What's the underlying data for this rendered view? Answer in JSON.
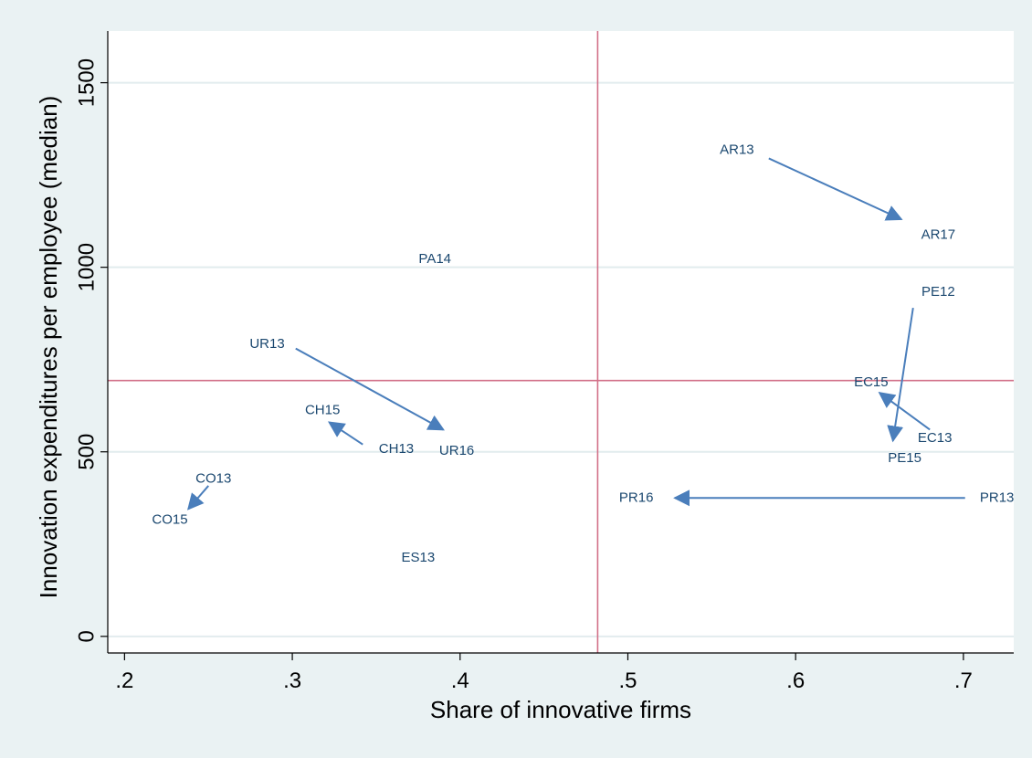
{
  "chart_data": {
    "type": "scatter",
    "xlabel": "Share of innovative firms",
    "ylabel": "Innovation expenditures per employee (median)",
    "xlim": [
      0.19,
      0.73
    ],
    "ylim": [
      -45,
      1640
    ],
    "xticks": [
      0.2,
      0.3,
      0.4,
      0.5,
      0.6,
      0.7
    ],
    "xtick_labels": [
      ".2",
      ".3",
      ".4",
      ".5",
      ".6",
      ".7"
    ],
    "yticks": [
      0,
      500,
      1000,
      1500
    ],
    "ytick_labels": [
      "0",
      "500",
      "1000",
      "1500"
    ],
    "grid": "horizontal",
    "reference_lines": {
      "x": 0.482,
      "y": 693
    },
    "points": [
      {
        "label": "AR13",
        "x": 0.565,
        "y": 1320
      },
      {
        "label": "AR17",
        "x": 0.685,
        "y": 1090
      },
      {
        "label": "PA14",
        "x": 0.385,
        "y": 1025
      },
      {
        "label": "PE12",
        "x": 0.685,
        "y": 935
      },
      {
        "label": "UR13",
        "x": 0.285,
        "y": 795
      },
      {
        "label": "EC15",
        "x": 0.645,
        "y": 690
      },
      {
        "label": "CH15",
        "x": 0.318,
        "y": 615
      },
      {
        "label": "EC13",
        "x": 0.683,
        "y": 540
      },
      {
        "label": "CH13",
        "x": 0.362,
        "y": 510
      },
      {
        "label": "UR16",
        "x": 0.398,
        "y": 505
      },
      {
        "label": "PE15",
        "x": 0.665,
        "y": 485
      },
      {
        "label": "CO13",
        "x": 0.253,
        "y": 430
      },
      {
        "label": "PR16",
        "x": 0.505,
        "y": 378
      },
      {
        "label": "PR13",
        "x": 0.72,
        "y": 378
      },
      {
        "label": "CO15",
        "x": 0.227,
        "y": 318
      },
      {
        "label": "ES13",
        "x": 0.375,
        "y": 215
      }
    ],
    "arrows": [
      {
        "from": [
          0.584,
          1295
        ],
        "to": [
          0.663,
          1130
        ]
      },
      {
        "from": [
          0.302,
          780
        ],
        "to": [
          0.39,
          560
        ]
      },
      {
        "from": [
          0.342,
          520
        ],
        "to": [
          0.322,
          580
        ]
      },
      {
        "from": [
          0.25,
          408
        ],
        "to": [
          0.238,
          345
        ]
      },
      {
        "from": [
          0.67,
          890
        ],
        "to": [
          0.658,
          530
        ]
      },
      {
        "from": [
          0.68,
          560
        ],
        "to": [
          0.65,
          660
        ]
      },
      {
        "from": [
          0.701,
          375
        ],
        "to": [
          0.528,
          375
        ]
      }
    ],
    "colors": {
      "marker": "#1a476f",
      "arrow": "#4a7ebb",
      "reference": "#d27088",
      "grid": "#e2ecee",
      "plot_bg": "#ffffff",
      "page_bg": "#eaf2f3"
    }
  }
}
